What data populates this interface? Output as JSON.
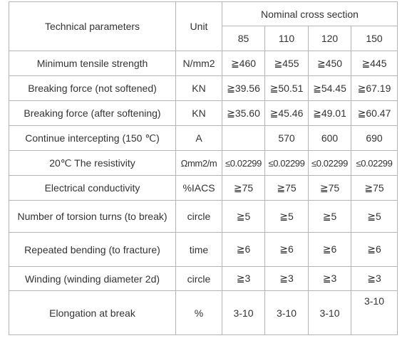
{
  "header": {
    "title": "Technical parameters",
    "unit": "Unit",
    "group": "Nominal cross section",
    "sections": [
      "85",
      "110",
      "120",
      "150"
    ]
  },
  "rows": [
    {
      "parameter": "Minimum tensile strength",
      "unit": "N/mm2",
      "values": [
        "≧460",
        "≧455",
        "≧450",
        "≧445"
      ]
    },
    {
      "parameter": "Breaking force (not softened)",
      "unit": "KN",
      "values": [
        "≧39.56",
        "≧50.51",
        "≧54.45",
        "≧67.19"
      ]
    },
    {
      "parameter": "Breaking force (after softening)",
      "unit": "KN",
      "values": [
        "≧35.60",
        "≧45.46",
        "≧49.01",
        "≧60.47"
      ]
    },
    {
      "parameter": "Continue intercepting (150 ℃)",
      "unit": "A",
      "values": [
        null,
        "570",
        "600",
        "690"
      ]
    },
    {
      "parameter": "20℃ The resistivity",
      "unit": "Ωmm2/m",
      "values": [
        "≤0.02299",
        "≤0.02299",
        "≤0.02299",
        "≤0.02299"
      ]
    },
    {
      "parameter": "Electrical conductivity",
      "unit": "%IACS",
      "values": [
        "≧75",
        "≧75",
        "≧75",
        "≧75"
      ]
    },
    {
      "parameter": "Number of torsion turns (to break)",
      "unit": "circle",
      "values": [
        "≧5",
        "≧5",
        "≧5",
        "≧5"
      ]
    },
    {
      "parameter": "Repeated bending (to fracture)",
      "unit": "time",
      "values": [
        "≧6",
        "≧6",
        "≧6",
        "≧6"
      ]
    },
    {
      "parameter": "Winding (winding diameter 2d)",
      "unit": "circle",
      "values": [
        "≧3",
        "≧3",
        "≧3",
        "≧3"
      ]
    },
    {
      "parameter": "Elongation at break",
      "unit": "%",
      "values": [
        "3-10",
        "3-10",
        "3-10",
        "3-10"
      ]
    }
  ]
}
